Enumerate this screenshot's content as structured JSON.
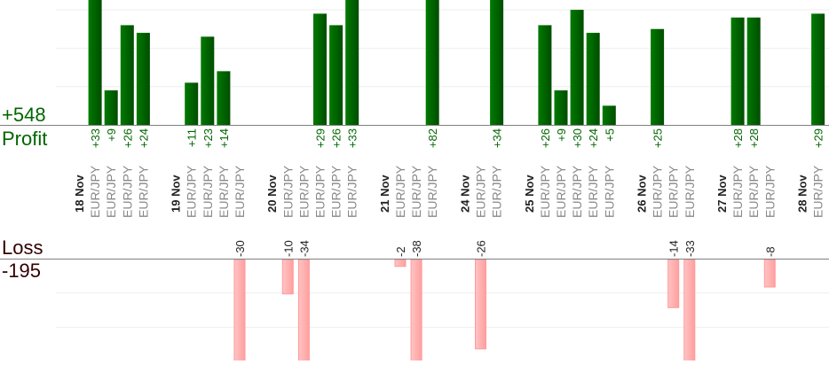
{
  "chart_data": {
    "type": "bar",
    "title": "",
    "profit": {
      "label": "Profit",
      "total": "+548",
      "color": "#006600"
    },
    "loss": {
      "label": "Loss",
      "total": "-195",
      "color": "#330000"
    },
    "colors": {
      "profit_light": "#007a00",
      "profit_dark": "#004d00",
      "loss_fill": "#ffb0b0",
      "loss_border": "#ff9999",
      "axis": "#808080",
      "grid": "#eeeeee"
    },
    "gridline_step": 10,
    "days": [
      {
        "label": "18 Nov",
        "trades": [
          {
            "pair": "EUR/JPY",
            "value": 33,
            "label": "+33"
          },
          {
            "pair": "EUR/JPY",
            "value": 9,
            "label": "+9"
          },
          {
            "pair": "EUR/JPY",
            "value": 26,
            "label": "+26"
          },
          {
            "pair": "EUR/JPY",
            "value": 24,
            "label": "+24"
          }
        ]
      },
      {
        "label": "19 Nov",
        "trades": [
          {
            "pair": "EUR/JPY",
            "value": 11,
            "label": "+11"
          },
          {
            "pair": "EUR/JPY",
            "value": 23,
            "label": "+23"
          },
          {
            "pair": "EUR/JPY",
            "value": 14,
            "label": "+14"
          },
          {
            "pair": "EUR/JPY",
            "value": -30,
            "label": "-30"
          }
        ]
      },
      {
        "label": "20 Nov",
        "trades": [
          {
            "pair": "EUR/JPY",
            "value": -10,
            "label": "-10"
          },
          {
            "pair": "EUR/JPY",
            "value": -34,
            "label": "-34"
          },
          {
            "pair": "EUR/JPY",
            "value": 29,
            "label": "+29"
          },
          {
            "pair": "EUR/JPY",
            "value": 26,
            "label": "+26"
          },
          {
            "pair": "EUR/JPY",
            "value": 33,
            "label": "+33"
          }
        ]
      },
      {
        "label": "21 Nov",
        "trades": [
          {
            "pair": "EUR/JPY",
            "value": -2,
            "label": "-2"
          },
          {
            "pair": "EUR/JPY",
            "value": -38,
            "label": "-38"
          },
          {
            "pair": "EUR/JPY",
            "value": 82,
            "label": "+82"
          }
        ]
      },
      {
        "label": "24 Nov",
        "trades": [
          {
            "pair": "EUR/JPY",
            "value": -26,
            "label": "-26"
          },
          {
            "pair": "EUR/JPY",
            "value": 34,
            "label": "+34"
          }
        ]
      },
      {
        "label": "25 Nov",
        "trades": [
          {
            "pair": "EUR/JPY",
            "value": 26,
            "label": "+26"
          },
          {
            "pair": "EUR/JPY",
            "value": 9,
            "label": "+9"
          },
          {
            "pair": "EUR/JPY",
            "value": 30,
            "label": "+30"
          },
          {
            "pair": "EUR/JPY",
            "value": 24,
            "label": "+24"
          },
          {
            "pair": "EUR/JPY",
            "value": 5,
            "label": "+5"
          }
        ]
      },
      {
        "label": "26 Nov",
        "trades": [
          {
            "pair": "EUR/JPY",
            "value": 25,
            "label": "+25"
          },
          {
            "pair": "EUR/JPY",
            "value": -14,
            "label": "-14"
          },
          {
            "pair": "EUR/JPY",
            "value": -33,
            "label": "-33"
          }
        ]
      },
      {
        "label": "27 Nov",
        "trades": [
          {
            "pair": "EUR/JPY",
            "value": 28,
            "label": "+28"
          },
          {
            "pair": "EUR/JPY",
            "value": 28,
            "label": "+28"
          },
          {
            "pair": "EUR/JPY",
            "value": -8,
            "label": "-8"
          }
        ]
      },
      {
        "label": "28 Nov",
        "trades": [
          {
            "pair": "EUR/JPY",
            "value": 29,
            "label": "+29"
          }
        ]
      }
    ]
  }
}
